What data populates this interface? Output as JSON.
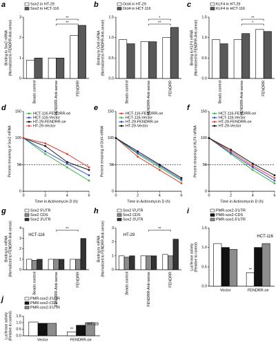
{
  "chart_data": [
    {
      "label": "a",
      "type": "bar",
      "ylabel": [
        "Binding to Sox2 mRNA",
        "(Normalized to FENDRR-Anti-sense)"
      ],
      "categories": [
        "Beads control",
        "FENDRR-Anti-sense",
        "FENDRR"
      ],
      "series": [
        {
          "name": "Sox2 in HT-29",
          "color": "#ffffff",
          "values": [
            0.9,
            1.0,
            2.1
          ]
        },
        {
          "name": "Sox2 in HCT-116",
          "color": "#595959",
          "values": [
            1.0,
            1.0,
            2.6
          ]
        }
      ],
      "ylim": [
        0,
        3
      ],
      "yticks": [
        0,
        1,
        2,
        3
      ],
      "annotations": [
        "**",
        "**"
      ]
    },
    {
      "label": "b",
      "type": "bar",
      "ylabel": [
        "Binding to Oct4 mRNA",
        "(Normalized to FENDRR-Anti-sense)"
      ],
      "categories": [
        "Beads control",
        "FENDRR-Anti-sense",
        "FENDRR"
      ],
      "series": [
        {
          "name": "Oct4 in HT-29",
          "color": "#ffffff",
          "values": [
            0.95,
            0.9,
            1.0
          ]
        },
        {
          "name": "Oct4 in HCT-116",
          "color": "#595959",
          "values": [
            0.85,
            0.9,
            1.25
          ]
        }
      ],
      "ylim": [
        0,
        1.5
      ],
      "yticks": [
        {
          "value": 0,
          "label": "0.0"
        },
        0.5,
        {
          "value": 1,
          "label": "1.0"
        },
        1.5
      ],
      "annotations": [
        "*",
        "**"
      ]
    },
    {
      "label": "c",
      "type": "bar",
      "ylabel": [
        "Binding to KLF4 mRNA",
        "(Normalized to FENDRR-Anti-sense)"
      ],
      "categories": [
        "Beads control",
        "FENDRR-Anti-sense",
        "FENDRR"
      ],
      "series": [
        {
          "name": "KLF4 in HT-29",
          "color": "#ffffff",
          "values": [
            0.95,
            0.95,
            1.2
          ]
        },
        {
          "name": "KLF4 in HCT-116",
          "color": "#595959",
          "values": [
            0.85,
            1.1,
            1.15
          ]
        }
      ],
      "ylim": [
        0,
        1.5
      ],
      "yticks": [
        {
          "value": 0,
          "label": "0.0"
        },
        0.5,
        {
          "value": 1,
          "label": "1.0"
        },
        1.5
      ],
      "annotations": [
        "**",
        "*"
      ]
    },
    {
      "label": "d",
      "type": "line",
      "ylabel": [
        "Percent remaining of Sox2 mRNA"
      ],
      "xlabel": "Time in Actinomycin D (h)",
      "x": [
        0,
        2,
        4,
        6
      ],
      "xlim": [
        0,
        6
      ],
      "xticks": [
        0,
        2,
        4,
        6
      ],
      "ylim": [
        0,
        150
      ],
      "yticks": [
        0,
        50,
        100,
        150
      ],
      "refline": 50,
      "series": [
        {
          "name": "HCT-116-FENDRR-oe",
          "color": "#3cb44b",
          "values": [
            100,
            70,
            45,
            20
          ]
        },
        {
          "name": "HCT-116-Vector",
          "color": "#3050c8",
          "values": [
            100,
            75,
            52,
            30
          ]
        },
        {
          "name": "HT-29-FENDRR-oe",
          "color": "#111111",
          "values": [
            100,
            85,
            55,
            40
          ]
        },
        {
          "name": "HT-29-Vector",
          "color": "#e03c31",
          "values": [
            100,
            90,
            70,
            45
          ]
        }
      ]
    },
    {
      "label": "e",
      "type": "line",
      "ylabel": [
        "Percent remaining of Oct4 mRNA"
      ],
      "xlabel": "Time in Actinomycin D (h)",
      "x": [
        0,
        2,
        4,
        6
      ],
      "xlim": [
        0,
        6
      ],
      "xticks": [
        0,
        2,
        4,
        6
      ],
      "ylim": [
        0,
        150
      ],
      "yticks": [
        0,
        50,
        100,
        150
      ],
      "refline": 50,
      "series": [
        {
          "name": "HCT-116-FENDRR-oe",
          "color": "#e03c31",
          "values": [
            100,
            65,
            40,
            15
          ]
        },
        {
          "name": "HCT-116-Vector",
          "color": "#3cb44b",
          "values": [
            100,
            70,
            45,
            20
          ]
        },
        {
          "name": "HT-29-FENDRR-oe",
          "color": "#3050c8",
          "values": [
            100,
            72,
            48,
            22
          ]
        },
        {
          "name": "HT-29-Vector",
          "color": "#111111",
          "values": [
            100,
            75,
            50,
            25
          ]
        }
      ]
    },
    {
      "label": "f",
      "type": "line",
      "ylabel": [
        "Percent remaining of KLF4 mRNA"
      ],
      "xlabel": "Time in Actinomycin D (h)",
      "x": [
        0,
        2,
        4,
        6
      ],
      "xlim": [
        0,
        6
      ],
      "xticks": [
        0,
        2,
        4,
        6
      ],
      "ylim": [
        0,
        150
      ],
      "yticks": [
        0,
        50,
        100,
        150
      ],
      "refline": 50,
      "series": [
        {
          "name": "HCT-116-FENDRR-oe",
          "color": "#3cb44b",
          "values": [
            100,
            70,
            40,
            15
          ]
        },
        {
          "name": "HCT-116-Vector",
          "color": "#3050c8",
          "values": [
            100,
            72,
            45,
            20
          ]
        },
        {
          "name": "HT-29-FENDRR-oe",
          "color": "#e03c31",
          "values": [
            100,
            75,
            48,
            25
          ]
        },
        {
          "name": "HT-29-Vector",
          "color": "#111111",
          "values": [
            100,
            78,
            52,
            30
          ]
        }
      ]
    },
    {
      "label": "g",
      "type": "bar",
      "ylabel": [
        "Binding to mRNA",
        "(Normalized to FENDRR-Anti-sense)"
      ],
      "subtitle": "HCT-116",
      "categories": [
        "Beads control",
        "FENDRR-Anti-sense",
        "FENDRR"
      ],
      "series": [
        {
          "name": "Sox2 5'UTR",
          "color": "#ffffff",
          "values": [
            1.0,
            1.0,
            1.0
          ]
        },
        {
          "name": "Sox2 CDS",
          "color": "#8c8c8c",
          "values": [
            0.9,
            1.0,
            1.0
          ]
        },
        {
          "name": "Sox2 3'UTR",
          "color": "#333333",
          "values": [
            1.0,
            1.0,
            3.0
          ]
        }
      ],
      "ylim": [
        0,
        4
      ],
      "yticks": [
        0,
        1,
        2,
        3,
        4
      ],
      "annotations": [
        "**"
      ]
    },
    {
      "label": "h",
      "type": "bar",
      "ylabel": [
        "Binding to mRNA",
        "(Normalized to FENDRR-Anti-sense)"
      ],
      "subtitle": "HT-29",
      "categories": [
        "Beads control",
        "FENDRR-Anti-sense",
        "FENDRR"
      ],
      "series": [
        {
          "name": "Sox2 5'UTR",
          "color": "#ffffff",
          "values": [
            1.0,
            1.0,
            1.1
          ]
        },
        {
          "name": "Sox2 CDS",
          "color": "#8c8c8c",
          "values": [
            0.9,
            1.0,
            1.0
          ]
        },
        {
          "name": "Sox2 3'UTR",
          "color": "#333333",
          "values": [
            1.0,
            1.0,
            2.2
          ]
        }
      ],
      "ylim": [
        0,
        3
      ],
      "yticks": [
        0,
        1,
        2,
        3
      ],
      "annotations": [
        "**"
      ]
    },
    {
      "label": "i",
      "type": "bar",
      "ylabel": [
        "Luciferase activity",
        "(Relative to control)"
      ],
      "subtitle": "HCT-116",
      "categories": [
        "Vector",
        "FENDRR-oe"
      ],
      "series": [
        {
          "name": "PMR-sox2-3'UTR",
          "color": "#ffffff",
          "values": [
            1.1,
            0.35
          ]
        },
        {
          "name": "PMR-sox2-CDS",
          "color": "#111111",
          "values": [
            1.0,
            1.0
          ]
        },
        {
          "name": "PMR-sox2-5'UTR",
          "color": "#8c8c8c",
          "values": [
            0.95,
            1.1
          ]
        }
      ],
      "ylim": [
        0,
        1.5
      ],
      "yticks": [
        {
          "value": 0,
          "label": "0.0"
        },
        0.5,
        {
          "value": 1,
          "label": "1.0"
        },
        1.5
      ],
      "annotations": [
        "**"
      ]
    },
    {
      "label": "j",
      "type": "bar",
      "ylabel": [
        "Luciferase activity",
        "(Relative to control)"
      ],
      "subtitle": "HT-29",
      "categories": [
        "Vector",
        "FENDRR-oe"
      ],
      "series": [
        {
          "name": "PMR-sox2-3'UTR",
          "color": "#ffffff",
          "values": [
            1.05,
            0.3
          ]
        },
        {
          "name": "PMR-sox2-CDS",
          "color": "#111111",
          "values": [
            0.95,
            0.8
          ]
        },
        {
          "name": "PMR-sox2-5'UTR",
          "color": "#8c8c8c",
          "values": [
            0.95,
            1.0
          ]
        }
      ],
      "ylim": [
        0,
        1.5
      ],
      "yticks": [
        {
          "value": 0,
          "label": "0.0"
        },
        0.5,
        {
          "value": 1,
          "label": "1.0"
        },
        1.5
      ],
      "annotations": [
        "**"
      ]
    }
  ]
}
